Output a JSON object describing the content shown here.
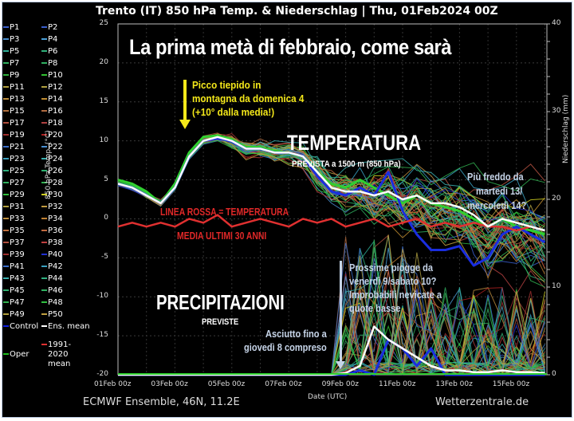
{
  "header": {
    "title": "Trento  (IT)  850 hPa Temp. & Niederschlag | Thu, 01Feb2024 00Z"
  },
  "footer": {
    "source": "ECMWF Ensemble, 46N, 11.2E",
    "site": "Wetterzentrale.de"
  },
  "legend": {
    "items": [
      {
        "label": "P1",
        "color": "#3a5fcd"
      },
      {
        "label": "P2",
        "color": "#3a5fcd"
      },
      {
        "label": "P3",
        "color": "#4a8fd0"
      },
      {
        "label": "P4",
        "color": "#4a9fd8"
      },
      {
        "label": "P5",
        "color": "#2fb09a"
      },
      {
        "label": "P6",
        "color": "#2fb07a"
      },
      {
        "label": "P7",
        "color": "#2fb060"
      },
      {
        "label": "P8",
        "color": "#2fb060"
      },
      {
        "label": "P9",
        "color": "#2fb040"
      },
      {
        "label": "P10",
        "color": "#30c030"
      },
      {
        "label": "P11",
        "color": "#b0a040"
      },
      {
        "label": "P12",
        "color": "#b0a040"
      },
      {
        "label": "P13",
        "color": "#c09040"
      },
      {
        "label": "P14",
        "color": "#c08c30"
      },
      {
        "label": "P15",
        "color": "#b07040"
      },
      {
        "label": "P16",
        "color": "#b06a40"
      },
      {
        "label": "P17",
        "color": "#b05040"
      },
      {
        "label": "P18",
        "color": "#b04040"
      },
      {
        "label": "P19",
        "color": "#a03030"
      },
      {
        "label": "P20",
        "color": "#b02020"
      },
      {
        "label": "P21",
        "color": "#3a6fcd"
      },
      {
        "label": "P22",
        "color": "#4a8fd0"
      },
      {
        "label": "P23",
        "color": "#3aa0c0"
      },
      {
        "label": "P24",
        "color": "#3ab0b0"
      },
      {
        "label": "P25",
        "color": "#2fb080"
      },
      {
        "label": "P26",
        "color": "#2fb070"
      },
      {
        "label": "P27",
        "color": "#2fb060"
      },
      {
        "label": "P28",
        "color": "#30b050"
      },
      {
        "label": "P29",
        "color": "#30c040"
      },
      {
        "label": "P30",
        "color": "#d0d020"
      },
      {
        "label": "P31",
        "color": "#b0a040"
      },
      {
        "label": "P32",
        "color": "#c09a40"
      },
      {
        "label": "P33",
        "color": "#c09040"
      },
      {
        "label": "P34",
        "color": "#c08030"
      },
      {
        "label": "P35",
        "color": "#c07040"
      },
      {
        "label": "P36",
        "color": "#c06a40"
      },
      {
        "label": "P37",
        "color": "#b05040"
      },
      {
        "label": "P38",
        "color": "#c04040"
      },
      {
        "label": "P39",
        "color": "#a03030"
      },
      {
        "label": "P40",
        "color": "#2030d0"
      },
      {
        "label": "P41",
        "color": "#3a6fcd"
      },
      {
        "label": "P42",
        "color": "#3aa0c0"
      },
      {
        "label": "P43",
        "color": "#3ab0b0"
      },
      {
        "label": "P44",
        "color": "#2fb080"
      },
      {
        "label": "P45",
        "color": "#2fb070"
      },
      {
        "label": "P46",
        "color": "#2fb060"
      },
      {
        "label": "P47",
        "color": "#30b050"
      },
      {
        "label": "P48",
        "color": "#30c040"
      },
      {
        "label": "P49",
        "color": "#b0a040"
      },
      {
        "label": "P50",
        "color": "#c0a040"
      },
      {
        "label": "Control",
        "color": "#1020e0"
      },
      {
        "label": "Ens. mean",
        "color": "#ffffff"
      },
      {
        "label": "Oper",
        "color": "#20c020"
      },
      {
        "label": "1991-2020 mean",
        "color": "#e03030"
      }
    ]
  },
  "annotations": {
    "headline": "La prima metà di febbraio, come sarà",
    "peak_line1": "Picco tiepido in",
    "peak_line2": "montagna da domenica 4",
    "peak_line3": "(+10° dalla media!)",
    "temp_title": "TEMPERATURA",
    "temp_sub": "PREVISTA a 1500 m (850 hPa)",
    "cold_line1": "Più freddo da",
    "cold_line2": "martedì 13/",
    "cold_line3": "mercoledì 14?",
    "red_line1": "LINEA ROSSA = TEMPERATURA",
    "red_line2": "MEDIA ULTIMI 30 ANNI",
    "rain_line1": "Prossime piogge da",
    "rain_line2": "venerdì 9/sabato 10?",
    "rain_line3": "Improbabili nevicate a",
    "rain_line4": "quote basse",
    "precip_title": "PRECIPITAZIONI",
    "precip_sub": "PREVISTE",
    "dry_line1": "Asciutto fino a",
    "dry_line2": "giovedì 8 compreso"
  },
  "colors": {
    "ens_mean": "#ffffff",
    "climatology": "#e03030",
    "control": "#1a2ee0",
    "oper": "#30d030",
    "annotation_yellow": "#f4e81a",
    "annotation_light_blue": "#c6d4e8",
    "annotation_red": "#e02828"
  },
  "chart_data": {
    "type": "line",
    "title": "Trento (IT) 850 hPa Temp. & Niederschlag | Thu, 01Feb2024 00Z",
    "xlabel": "Date (UTC)",
    "ylabel": "850 hPa Temp. (°C)",
    "y2label": "Niederschlag (mm)",
    "ylim": [
      -20,
      25
    ],
    "y2lim": [
      0,
      40
    ],
    "yticks": [
      25,
      20,
      15,
      10,
      5,
      0,
      -5,
      -10,
      -15,
      -20
    ],
    "y2ticks": [
      40,
      30,
      20,
      10,
      0
    ],
    "xticks": [
      "01Feb 00z",
      "03Feb 00z",
      "05Feb 00z",
      "07Feb 00z",
      "09Feb 00z",
      "11Feb 00z",
      "13Feb 00z",
      "15Feb 00z"
    ],
    "grid": true,
    "x_days": [
      0,
      0.5,
      1,
      1.5,
      2,
      2.5,
      3,
      3.5,
      4,
      4.5,
      5,
      5.5,
      6,
      6.5,
      7,
      7.5,
      8,
      8.5,
      9,
      9.5,
      10,
      10.5,
      11,
      11.5,
      12,
      12.5,
      13,
      13.5,
      14,
      14.5,
      15
    ],
    "series": [
      {
        "name": "Ens. mean (temp)",
        "axis": "left",
        "values": [
          4.5,
          4,
          3,
          2,
          4,
          8,
          10,
          10.5,
          10,
          9,
          9,
          8.5,
          8.5,
          8,
          6,
          4,
          3.5,
          3.5,
          3,
          3.5,
          2.5,
          3,
          2,
          2,
          1.5,
          0.5,
          -1,
          0,
          -0.5,
          -1,
          -1.5
        ]
      },
      {
        "name": "Control (temp)",
        "axis": "left",
        "values": [
          4.5,
          4,
          3,
          2,
          4,
          8,
          10,
          10.3,
          10,
          9,
          9,
          8.5,
          8.5,
          8,
          5.5,
          3.5,
          3,
          4,
          3,
          6,
          1,
          -2,
          -4,
          -4,
          -3.5,
          -6,
          -5,
          -2,
          -1,
          -2,
          -3
        ]
      },
      {
        "name": "Oper (temp)",
        "axis": "left",
        "values": [
          5,
          4.5,
          3.5,
          2,
          4.5,
          8.5,
          10.5,
          10.7,
          10.2,
          9.2,
          9.2,
          8.7,
          8.5,
          8,
          6,
          4.5,
          4,
          5,
          4,
          3,
          2,
          3,
          2,
          1.5,
          1,
          0,
          -1,
          0,
          -1,
          -1.5,
          -2
        ]
      },
      {
        "name": "1991-2020 mean (temp)",
        "axis": "left",
        "values": [
          -1,
          -0.5,
          -1,
          -0.5,
          -1,
          0,
          -0.5,
          0.5,
          -1,
          -0.5,
          0,
          -0.5,
          -1,
          0,
          -0.5,
          0,
          -1,
          -0.5,
          0,
          -1,
          -0.5,
          0,
          -1,
          -0.5,
          -1,
          -0.5,
          -1,
          -1,
          -1.5,
          -1,
          -1.5
        ]
      },
      {
        "name": "Ens. mean (precip)",
        "axis": "right",
        "values": [
          0,
          0,
          0,
          0,
          0,
          0,
          0,
          0,
          0,
          0,
          0,
          0,
          0,
          0,
          0,
          0,
          0.2,
          1,
          5.5,
          4,
          3,
          2,
          1,
          0.5,
          0.5,
          0.3,
          0.3,
          0.5,
          0.3,
          0.3,
          0.2
        ]
      },
      {
        "name": "Control (precip)",
        "axis": "right",
        "values": [
          0,
          0,
          0,
          0,
          0,
          0,
          0,
          0,
          0,
          0,
          0,
          0,
          0,
          0,
          0,
          0,
          0,
          0.5,
          0,
          4,
          3,
          1,
          3,
          0,
          0,
          0,
          0,
          0,
          0,
          0,
          0
        ]
      }
    ]
  }
}
